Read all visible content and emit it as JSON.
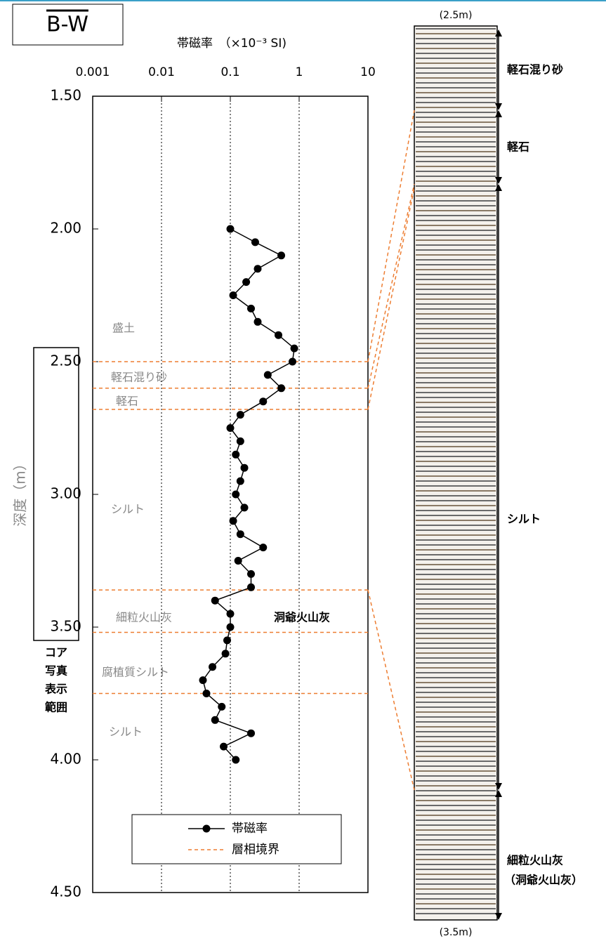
{
  "chart_data": {
    "type": "line",
    "title": "B-W",
    "x_label": "帯磁率　（×10⁻³ SI)",
    "y_label": "深度（m）",
    "xlim": [
      0.001,
      10
    ],
    "xticks": [
      0.001,
      0.01,
      0.1,
      1,
      10
    ],
    "x_log": true,
    "ylim": [
      1.5,
      4.5
    ],
    "y_inverted": true,
    "yticks": [
      {
        "value": 1.5,
        "label": "1.50"
      },
      {
        "value": 2,
        "label": "2.00"
      },
      {
        "value": 2.5,
        "label": "2.50"
      },
      {
        "value": 3,
        "label": "3.00"
      },
      {
        "value": 3.5,
        "label": "3.50"
      },
      {
        "value": 4,
        "label": "4.00"
      },
      {
        "value": 4.5,
        "label": "4.50"
      }
    ],
    "grid": true,
    "depths": [
      2.0,
      2.05,
      2.1,
      2.15,
      2.2,
      2.25,
      2.3,
      2.35,
      2.4,
      2.45,
      2.5,
      2.55,
      2.6,
      2.65,
      2.7,
      2.75,
      2.8,
      2.85,
      2.9,
      2.95,
      3.0,
      3.05,
      3.1,
      3.15,
      3.2,
      3.25,
      3.3,
      3.35,
      3.4,
      3.45,
      3.5,
      3.55,
      3.6,
      3.65,
      3.7,
      3.75,
      3.8,
      3.85,
      3.9,
      3.95,
      4.0
    ],
    "series": [
      {
        "name": "帯磁率",
        "color": "#000000",
        "values": [
          0.1,
          0.23,
          0.55,
          0.25,
          0.17,
          0.11,
          0.2,
          0.25,
          0.5,
          0.85,
          0.8,
          0.35,
          0.55,
          0.3,
          0.14,
          0.1,
          0.14,
          0.12,
          0.16,
          0.14,
          0.12,
          0.16,
          0.11,
          0.14,
          0.3,
          0.13,
          0.2,
          0.2,
          0.06,
          0.1,
          0.1,
          0.09,
          0.085,
          0.055,
          0.04,
          0.045,
          0.075,
          0.06,
          0.2,
          0.08,
          0.12
        ]
      }
    ],
    "boundaries": {
      "name": "層相境界",
      "color": "#ed7d31",
      "values": [
        2.5,
        2.6,
        2.68,
        3.36,
        3.52,
        3.75
      ]
    },
    "layers": [
      "盛土",
      "軽石混り砂",
      "軽石",
      "シルト",
      "細粒火山灰",
      "腐植質シルト",
      "シルト"
    ],
    "tephra": "洞爺火山灰",
    "core_caption": [
      "コア",
      "写真",
      "表示",
      "範囲"
    ],
    "core": {
      "top_label": "(2.5m)",
      "bottom_label": "(3.5m)",
      "units": [
        "軽石混り砂",
        "軽石",
        "シルト",
        "細粒火山灰",
        "（洞爺火山灰）"
      ]
    }
  }
}
